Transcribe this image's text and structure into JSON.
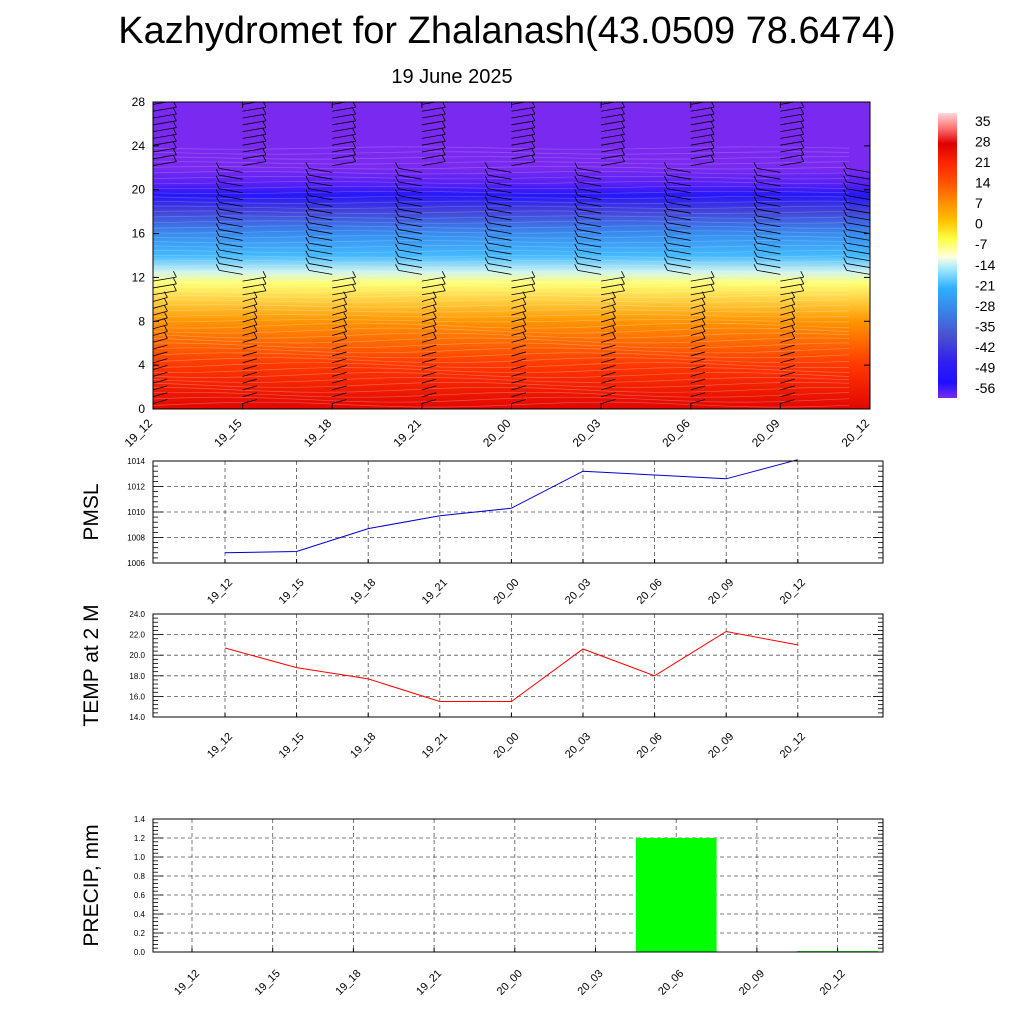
{
  "header": {
    "title": "Kazhydromet for Zhalanash(43.0509 78.6474)",
    "subtitle": "19 June 2025"
  },
  "colors": {
    "pmsl_line": "#0000cc",
    "temp_line": "#ff0000",
    "precip_bar": "#00ff00",
    "grid": "#555555"
  },
  "chart_data": [
    {
      "type": "heatmap",
      "name": "cross-section",
      "x": [
        "19_12",
        "19_15",
        "19_18",
        "19_21",
        "20_00",
        "20_03",
        "20_06",
        "20_09",
        "20_12"
      ],
      "ylim": [
        0,
        28
      ],
      "y_ticks": [
        "0",
        "4",
        "8",
        "12",
        "16",
        "20",
        "24",
        "28"
      ],
      "colorbar": {
        "labels": [
          "35",
          "28",
          "21",
          "14",
          "7",
          "0",
          "-7",
          "-14",
          "-21",
          "-28",
          "-35",
          "-42",
          "-49",
          "-56"
        ],
        "stops": [
          [
            35,
            "#ffd8d8"
          ],
          [
            30,
            "#ff7070"
          ],
          [
            25,
            "#dd0000"
          ],
          [
            18,
            "#ff2a00"
          ],
          [
            12,
            "#ff5500"
          ],
          [
            6,
            "#ff8c00"
          ],
          [
            0,
            "#ffc000"
          ],
          [
            -6,
            "#ffff40"
          ],
          [
            -12,
            "#ffffe0"
          ],
          [
            -16,
            "#a0e8ff"
          ],
          [
            -22,
            "#30b0ff"
          ],
          [
            -30,
            "#3a80e8"
          ],
          [
            -38,
            "#4a50d0"
          ],
          [
            -46,
            "#3020ee"
          ],
          [
            -53,
            "#1e10ff"
          ],
          [
            -58,
            "#7a2af0"
          ]
        ]
      },
      "level_temps": [
        [
          0,
          24
        ],
        [
          4,
          16
        ],
        [
          8,
          5
        ],
        [
          11.5,
          -8
        ],
        [
          12.5,
          -14
        ],
        [
          14,
          -21
        ],
        [
          16,
          -28
        ],
        [
          18,
          -40
        ],
        [
          19.5,
          -50
        ],
        [
          20.5,
          -56
        ],
        [
          22,
          -58
        ],
        [
          28,
          -58
        ]
      ]
    },
    {
      "type": "line",
      "name": "pmsl",
      "ylabel": "PMSL",
      "categories": [
        "19_12",
        "19_15",
        "19_18",
        "19_21",
        "20_00",
        "20_03",
        "20_06",
        "20_09",
        "20_12"
      ],
      "values": [
        1006.8,
        1006.9,
        1008.7,
        1009.7,
        1010.3,
        1013.2,
        1012.9,
        1012.6,
        1014.1
      ],
      "ylim": [
        1006,
        1014
      ],
      "y_ticks": [
        "1006",
        "1008",
        "1010",
        "1012",
        "1014"
      ],
      "grid": true
    },
    {
      "type": "line",
      "name": "temp",
      "ylabel": "TEMP at 2 M",
      "categories": [
        "19_12",
        "19_15",
        "19_18",
        "19_21",
        "20_00",
        "20_03",
        "20_06",
        "20_09",
        "20_12"
      ],
      "values": [
        20.7,
        18.8,
        17.7,
        15.5,
        15.5,
        20.6,
        18.0,
        22.3,
        21.0
      ],
      "ylim": [
        14,
        24
      ],
      "y_ticks": [
        "14.0",
        "16.0",
        "18.0",
        "20.0",
        "22.0",
        "24.0"
      ],
      "grid": true
    },
    {
      "type": "bar",
      "name": "precip",
      "ylabel": "PRECIP, mm",
      "categories": [
        "19_12",
        "19_15",
        "19_18",
        "19_21",
        "20_00",
        "20_03",
        "20_06",
        "20_09",
        "20_12"
      ],
      "values": [
        0,
        0,
        0,
        0,
        0,
        0,
        1.2,
        0,
        0.01
      ],
      "ylim": [
        0,
        1.4
      ],
      "y_ticks": [
        "0.0",
        "0.2",
        "0.4",
        "0.6",
        "0.8",
        "1.0",
        "1.2",
        "1.4"
      ],
      "grid": true
    }
  ]
}
